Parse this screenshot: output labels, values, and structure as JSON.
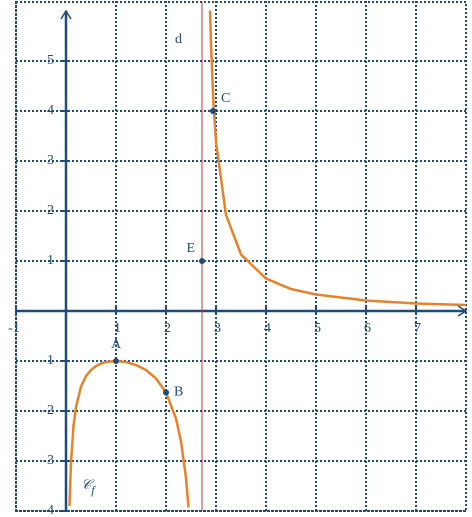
{
  "chart_data": {
    "type": "line",
    "xlim": [
      -1,
      8
    ],
    "ylim": [
      -4,
      6.2
    ],
    "xticks": [
      -1,
      1,
      2,
      3,
      4,
      5,
      6,
      7
    ],
    "yticks": [
      -4,
      -3,
      -2,
      -1,
      1,
      2,
      3,
      4,
      5
    ],
    "grid": true,
    "axis_color": "#1f4b78",
    "series": [
      {
        "color": "#e8822a",
        "x": [
          0.07,
          0.1,
          0.15,
          0.2,
          0.3,
          0.4,
          0.5,
          0.6,
          0.7,
          0.8,
          1,
          1.2,
          1.4,
          1.6,
          1.8,
          2,
          2.2,
          2.3,
          2.4,
          2.45
        ],
        "values": [
          -3.9,
          -3.03,
          -2.3,
          -1.92,
          -1.51,
          -1.3,
          -1.18,
          -1.1,
          -1.05,
          -1.02,
          -1,
          -1.02,
          -1.08,
          -1.18,
          -1.35,
          -1.63,
          -2.15,
          -2.61,
          -3.34,
          -3.93
        ]
      },
      {
        "color": "#e8822a",
        "x": [
          2.88,
          2.9,
          2.95,
          3,
          3.2,
          3.5,
          4,
          4.5,
          5,
          6,
          7,
          8
        ],
        "values": [
          6.01,
          5.33,
          4.14,
          3.38,
          1.92,
          1.13,
          0.65,
          0.44,
          0.33,
          0.21,
          0.15,
          0.12
        ]
      }
    ],
    "asymptote": {
      "label": "d",
      "x": 2.72,
      "color": "#c0392b"
    },
    "points": [
      {
        "label": "A",
        "x": 1,
        "y": -1
      },
      {
        "label": "B",
        "x": 2,
        "y": -1.63
      },
      {
        "label": "C",
        "x": 2.94,
        "y": 4
      },
      {
        "label": "E",
        "x": 2.72,
        "y": 1
      }
    ],
    "curve_label": {
      "main": "𝒞",
      "sub": "f",
      "x": 0.3,
      "y": -3.5
    }
  }
}
